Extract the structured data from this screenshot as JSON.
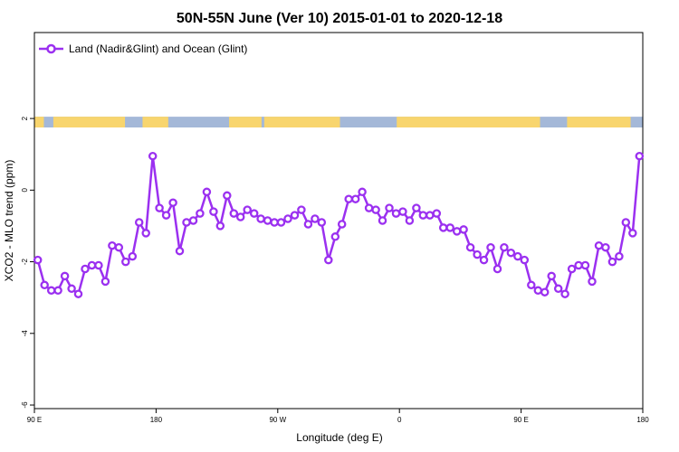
{
  "chart_data": {
    "type": "line",
    "title": "50N-55N June (Ver 10)   2015-01-01 to 2020-12-18",
    "xlabel": "Longitude (deg E)",
    "ylabel": "XCO2 - MLO trend (ppm)",
    "xlim": [
      90,
      540
    ],
    "ylim": [
      -6.1,
      4.4
    ],
    "xticks": [
      {
        "value": 90,
        "label": "90 E"
      },
      {
        "value": 180,
        "label": "180"
      },
      {
        "value": 270,
        "label": "90 W"
      },
      {
        "value": 360,
        "label": "0"
      },
      {
        "value": 450,
        "label": "90 E"
      },
      {
        "value": 540,
        "label": "180"
      }
    ],
    "yticks": [
      {
        "value": -6,
        "label": "-6"
      },
      {
        "value": -4,
        "label": "-4"
      },
      {
        "value": -2,
        "label": "-2"
      },
      {
        "value": 0,
        "label": "0"
      },
      {
        "value": 2,
        "label": "2"
      }
    ],
    "grid": false,
    "legend_position": "top-left",
    "series": [
      {
        "name": "Land (Nadir&Glint) and Ocean (Glint)",
        "color": "#9b30f0",
        "x": [
          92.5,
          97.5,
          102.5,
          107.5,
          112.5,
          117.5,
          122.5,
          127.5,
          132.5,
          137.5,
          142.5,
          147.5,
          152.5,
          157.5,
          162.5,
          167.5,
          172.5,
          177.5,
          182.5,
          187.5,
          192.5,
          197.5,
          202.5,
          207.5,
          212.5,
          217.5,
          222.5,
          227.5,
          232.5,
          237.5,
          242.5,
          247.5,
          252.5,
          257.5,
          262.5,
          267.5,
          272.5,
          277.5,
          282.5,
          287.5,
          292.5,
          297.5,
          302.5,
          307.5,
          312.5,
          317.5,
          322.5,
          327.5,
          332.5,
          337.5,
          342.5,
          347.5,
          352.5,
          357.5,
          362.5,
          367.5,
          372.5,
          377.5,
          382.5,
          387.5,
          392.5,
          397.5,
          402.5,
          407.5,
          412.5,
          417.5,
          422.5,
          427.5,
          432.5,
          437.5,
          442.5,
          447.5,
          452.5,
          457.5,
          462.5,
          467.5,
          472.5,
          477.5,
          482.5,
          487.5,
          492.5,
          497.5,
          502.5,
          507.5,
          512.5,
          517.5,
          522.5,
          527.5,
          532.5,
          537.5
        ],
        "y": [
          -1.95,
          -2.65,
          -2.8,
          -2.8,
          -2.4,
          -2.75,
          -2.9,
          -2.2,
          -2.1,
          -2.1,
          -2.55,
          -1.55,
          -1.6,
          -2.0,
          -1.85,
          -0.9,
          -1.2,
          0.95,
          -0.5,
          -0.7,
          -0.35,
          -1.7,
          -0.9,
          -0.85,
          -0.65,
          -0.05,
          -0.6,
          -1.0,
          -0.15,
          -0.65,
          -0.75,
          -0.55,
          -0.65,
          -0.8,
          -0.85,
          -0.9,
          -0.9,
          -0.8,
          -0.7,
          -0.55,
          -0.95,
          -0.8,
          -0.9,
          -1.95,
          -1.3,
          -0.95,
          -0.25,
          -0.25,
          -0.05,
          -0.5,
          -0.55,
          -0.85,
          -0.5,
          -0.65,
          -0.6,
          -0.85,
          -0.5,
          -0.7,
          -0.7,
          -0.65,
          -1.05,
          -1.05,
          -1.15,
          -1.1,
          -1.6,
          -1.8,
          -1.95,
          -1.6,
          -2.2,
          -1.6,
          -1.75,
          -1.85,
          -1.95,
          -2.65,
          -2.8,
          -2.85,
          -2.4,
          -2.75,
          -2.9,
          -2.2,
          -2.1,
          -2.1,
          -2.55,
          -1.55,
          -1.6,
          -2.0,
          -1.85,
          -0.9,
          -1.2,
          0.95
        ]
      }
    ],
    "colors": {
      "land": "#f8d56e",
      "ocean": "#a4b8d8",
      "line": "#9b30f0"
    },
    "land_strip": {
      "y_range": [
        1.75,
        2.05
      ],
      "land_spans": [
        [
          90,
          97
        ],
        [
          104,
          157
        ],
        [
          170,
          189
        ],
        [
          234,
          258
        ],
        [
          260,
          316
        ],
        [
          358,
          464
        ],
        [
          484,
          531
        ]
      ]
    }
  }
}
